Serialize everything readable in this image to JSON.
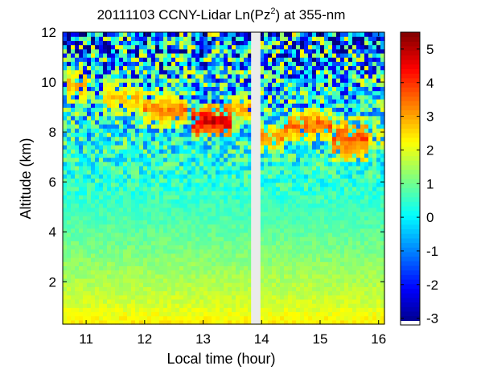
{
  "chart_data": {
    "type": "heatmap",
    "title_prefix": "20111103 CCNY-Lidar Ln(Pz",
    "title_sup": "2",
    "title_suffix": ") at 355-nm",
    "xlabel": "Local time (hour)",
    "ylabel": "Altitude (km)",
    "xlim": [
      10.6,
      16.1
    ],
    "ylim": [
      0.3,
      12
    ],
    "x_ticks": [
      11,
      12,
      13,
      14,
      15,
      16
    ],
    "y_ticks": [
      2,
      4,
      6,
      8,
      10,
      12
    ],
    "colorbar": {
      "range": [
        -3.2,
        5.5
      ],
      "ticks": [
        -3,
        -2,
        -1,
        0,
        1,
        2,
        3,
        4,
        5
      ],
      "colormap": "jet"
    },
    "data_gap": {
      "start": 13.82,
      "end": 13.98
    },
    "background_profile": [
      {
        "altitude_km": 0.3,
        "value": 2.4
      },
      {
        "altitude_km": 1.0,
        "value": 1.9
      },
      {
        "altitude_km": 3.0,
        "value": 1.2
      },
      {
        "altitude_km": 5.0,
        "value": 0.6
      },
      {
        "altitude_km": 7.0,
        "value": 0.3
      },
      {
        "altitude_km": 8.5,
        "value": 0.2
      },
      {
        "altitude_km": 10.0,
        "value": -0.2
      },
      {
        "altitude_km": 12.0,
        "value": -0.8
      }
    ],
    "cloud_layers": [
      {
        "time_start": 10.7,
        "time_end": 11.0,
        "alt_low": 9.2,
        "alt_high": 10.6,
        "value": 3.2
      },
      {
        "time_start": 11.3,
        "time_end": 12.0,
        "alt_low": 8.6,
        "alt_high": 10.2,
        "value": 2.6
      },
      {
        "time_start": 12.0,
        "time_end": 12.7,
        "alt_low": 8.2,
        "alt_high": 9.6,
        "value": 3.4
      },
      {
        "time_start": 12.8,
        "time_end": 13.5,
        "alt_low": 7.8,
        "alt_high": 9.1,
        "value": 4.9
      },
      {
        "time_start": 13.5,
        "time_end": 13.8,
        "alt_low": 8.4,
        "alt_high": 9.6,
        "value": 3.0
      },
      {
        "time_start": 14.0,
        "time_end": 14.4,
        "alt_low": 7.2,
        "alt_high": 8.4,
        "value": 3.2
      },
      {
        "time_start": 14.4,
        "time_end": 15.2,
        "alt_low": 7.6,
        "alt_high": 9.0,
        "value": 3.6
      },
      {
        "time_start": 15.2,
        "time_end": 15.8,
        "alt_low": 6.8,
        "alt_high": 8.6,
        "value": 3.8
      },
      {
        "time_start": 15.8,
        "time_end": 16.1,
        "alt_low": 7.4,
        "alt_high": 8.2,
        "value": 2.8
      }
    ]
  }
}
